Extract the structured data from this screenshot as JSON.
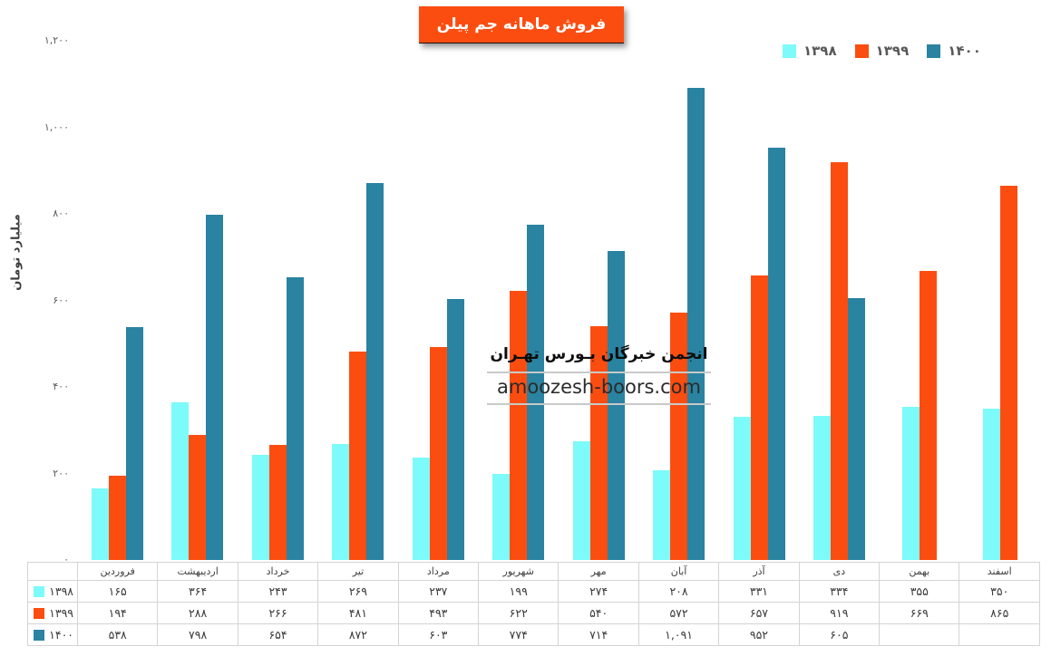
{
  "title": "فروش ماهانه جم پیلن",
  "colors": {
    "title_bg": "#FC4D11",
    "s1398": "#7DFAFA",
    "s1399": "#FC4D11",
    "s1400": "#2983A1"
  },
  "y_axis": {
    "title": "میلیارد تومان",
    "max": 1200,
    "ticks": [
      {
        "value": 0,
        "label": "۰"
      },
      {
        "value": 200,
        "label": "۲۰۰"
      },
      {
        "value": 400,
        "label": "۴۰۰"
      },
      {
        "value": 600,
        "label": "۶۰۰"
      },
      {
        "value": 800,
        "label": "۸۰۰"
      },
      {
        "value": 1000,
        "label": "۱,۰۰۰"
      },
      {
        "value": 1200,
        "label": "۱,۲۰۰"
      }
    ]
  },
  "months": [
    "فروردین",
    "اردیبهشت",
    "خرداد",
    "تیر",
    "مرداد",
    "شهریور",
    "مهر",
    "آبان",
    "آذر",
    "دی",
    "بهمن",
    "اسفند"
  ],
  "series": [
    {
      "key": "y1398",
      "label": "۱۳۹۸",
      "color": "#7DFAFA",
      "values": [
        165,
        364,
        243,
        269,
        237,
        199,
        274,
        208,
        331,
        334,
        355,
        350
      ],
      "display": [
        "۱۶۵",
        "۳۶۴",
        "۲۴۳",
        "۲۶۹",
        "۲۳۷",
        "۱۹۹",
        "۲۷۴",
        "۲۰۸",
        "۳۳۱",
        "۳۳۴",
        "۳۵۵",
        "۳۵۰"
      ]
    },
    {
      "key": "y1399",
      "label": "۱۳۹۹",
      "color": "#FC4D11",
      "values": [
        194,
        288,
        266,
        481,
        493,
        622,
        540,
        572,
        657,
        919,
        669,
        865
      ],
      "display": [
        "۱۹۴",
        "۲۸۸",
        "۲۶۶",
        "۴۸۱",
        "۴۹۳",
        "۶۲۲",
        "۵۴۰",
        "۵۷۲",
        "۶۵۷",
        "۹۱۹",
        "۶۶۹",
        "۸۶۵"
      ]
    },
    {
      "key": "y1400",
      "label": "۱۴۰۰",
      "color": "#2983A1",
      "values": [
        538,
        798,
        654,
        872,
        603,
        774,
        714,
        1091,
        952,
        605,
        null,
        null
      ],
      "display": [
        "۵۳۸",
        "۷۹۸",
        "۶۵۴",
        "۸۷۲",
        "۶۰۳",
        "۷۷۴",
        "۷۱۴",
        "۱,۰۹۱",
        "۹۵۲",
        "۶۰۵",
        "",
        ""
      ]
    }
  ],
  "watermark": {
    "line1": "انجمن خبرگان بـورس تهـران",
    "line2": "amoozesh-boors.com"
  },
  "chart_data": {
    "type": "bar",
    "title": "فروش ماهانه جم پیلن",
    "categories": [
      "فروردین",
      "اردیبهشت",
      "خرداد",
      "تیر",
      "مرداد",
      "شهریور",
      "مهر",
      "آبان",
      "آذر",
      "دی",
      "بهمن",
      "اسفند"
    ],
    "series": [
      {
        "name": "۱۳۹۸",
        "color": "#7DFAFA",
        "values": [
          165,
          364,
          243,
          269,
          237,
          199,
          274,
          208,
          331,
          334,
          355,
          350
        ]
      },
      {
        "name": "۱۳۹۹",
        "color": "#FC4D11",
        "values": [
          194,
          288,
          266,
          481,
          493,
          622,
          540,
          572,
          657,
          919,
          669,
          865
        ]
      },
      {
        "name": "۱۴۰۰",
        "color": "#2983A1",
        "values": [
          538,
          798,
          654,
          872,
          603,
          774,
          714,
          1091,
          952,
          605,
          null,
          null
        ]
      }
    ],
    "xlabel": "",
    "ylabel": "میلیارد تومان",
    "ylim": [
      0,
      1200
    ],
    "y_ticks": [
      0,
      200,
      400,
      600,
      800,
      1000,
      1200
    ],
    "grid": false,
    "legend_position": "top-right",
    "data_table_below_axis": true
  }
}
